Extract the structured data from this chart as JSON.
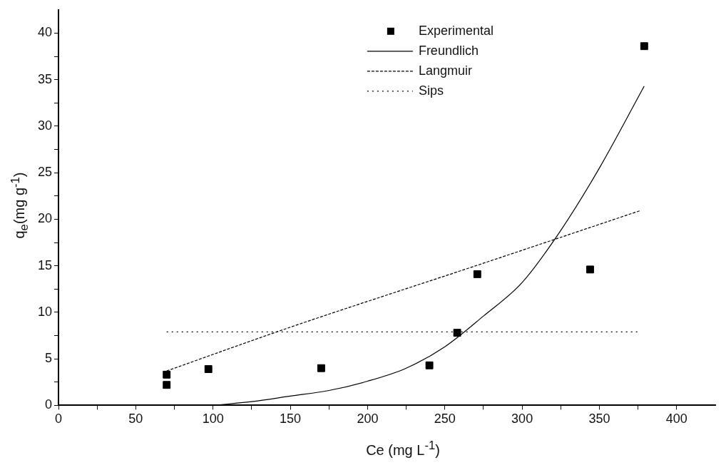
{
  "chart_data": {
    "type": "scatter",
    "xlabel": "Ce (mg L$^{-1}$)",
    "ylabel": "q$_{e}$(mg g$^{-1}$)",
    "xlim": [
      0,
      425
    ],
    "ylim": [
      0,
      42.5
    ],
    "xticks": [
      0,
      {
        "value": 25,
        "label": null
      },
      50,
      {
        "value": 75,
        "label": null
      },
      100,
      {
        "value": 125,
        "label": null
      },
      150,
      {
        "value": 175,
        "label": null
      },
      200,
      {
        "value": 225,
        "label": null
      },
      250,
      {
        "value": 275,
        "label": null
      },
      300,
      {
        "value": 325,
        "label": null
      },
      350,
      {
        "value": 375,
        "label": null
      },
      400
    ],
    "yticks": [
      0,
      {
        "value": 2.5,
        "label": null
      },
      5,
      {
        "value": 7.5,
        "label": null
      },
      10,
      {
        "value": 12.5,
        "label": null
      },
      15,
      {
        "value": 17.5,
        "label": null
      },
      20,
      {
        "value": 22.5,
        "label": null
      },
      25,
      {
        "value": 27.5,
        "label": null
      },
      30,
      {
        "value": 32.5,
        "label": null
      },
      35,
      {
        "value": 37.5,
        "label": null
      },
      40
    ],
    "grid": false,
    "legend": "top right",
    "series": [
      {
        "name": "Experimental",
        "type": "scatter",
        "marker": "square",
        "color": "#000000",
        "x": [
          70,
          70,
          97,
          170,
          240,
          258,
          271,
          344,
          379
        ],
        "values": [
          3.3,
          2.2,
          3.9,
          4.0,
          4.3,
          7.8,
          14.1,
          14.6,
          38.6
        ]
      },
      {
        "name": "Freundlich",
        "type": "line",
        "marker": "none",
        "line_style": "solid",
        "color": "#000000",
        "x": [
          100,
          125,
          150,
          175,
          200,
          225,
          250,
          275,
          300,
          325,
          350,
          379
        ],
        "values": [
          0,
          0.4,
          1.0,
          1.6,
          2.6,
          4.0,
          6.3,
          9.6,
          13.2,
          18.8,
          25.5,
          34.3
        ]
      },
      {
        "name": "Langmuir",
        "type": "line",
        "marker": "none",
        "line_style": "dashed",
        "color": "#000000",
        "x": [
          70,
          150,
          270,
          376
        ],
        "values": [
          3.7,
          8.4,
          15.0,
          20.9
        ]
      },
      {
        "name": "Sips",
        "type": "line",
        "marker": "none",
        "line_style": "dotted",
        "color": "#000000",
        "x": [
          70,
          375
        ],
        "values": [
          7.9,
          7.9
        ]
      }
    ]
  }
}
